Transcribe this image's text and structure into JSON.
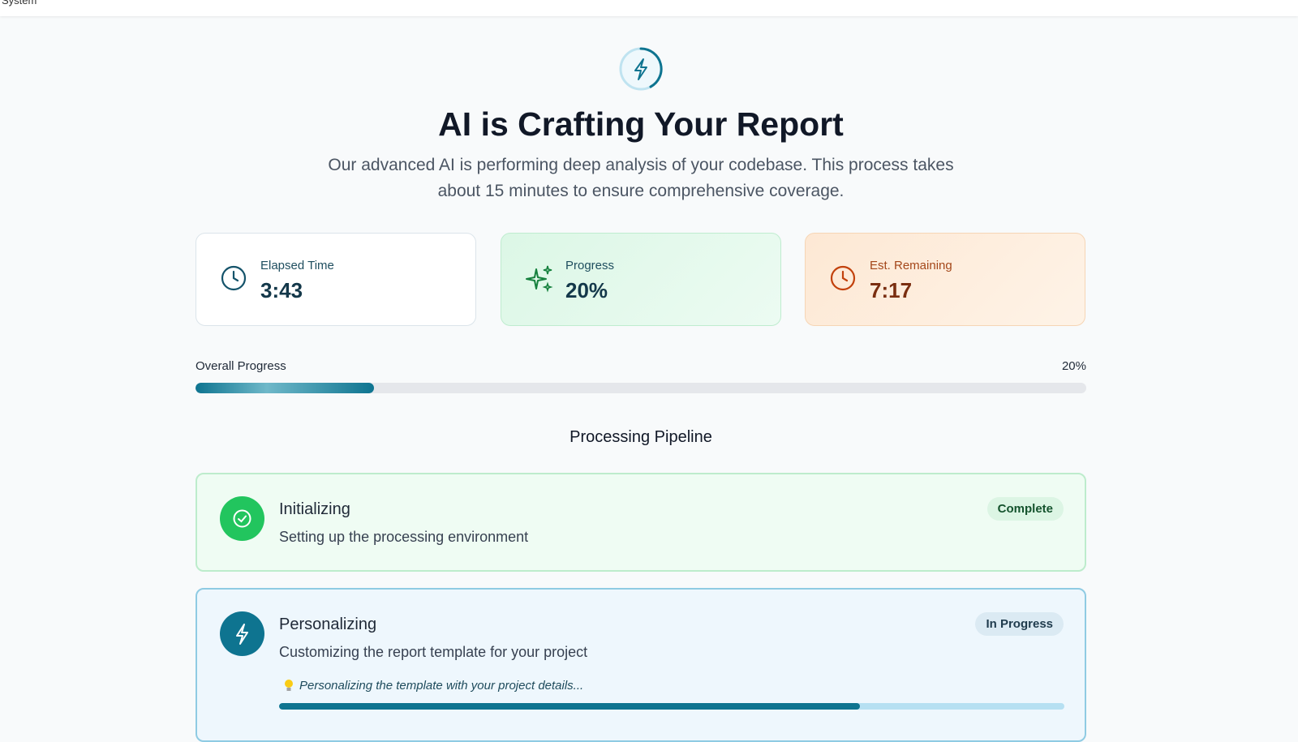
{
  "top_bar": {
    "label": "System"
  },
  "header": {
    "title": "AI is Crafting Your Report",
    "subtitle": "Our advanced AI is performing deep analysis of your codebase. This process takes about 15 minutes to ensure comprehensive coverage."
  },
  "stats": [
    {
      "label": "Elapsed Time",
      "value": "3:43"
    },
    {
      "label": "Progress",
      "value": "20%"
    },
    {
      "label": "Est. Remaining",
      "value": "7:17"
    }
  ],
  "overall_progress": {
    "label": "Overall Progress",
    "percent": {
      "value": 20,
      "label": "20%"
    }
  },
  "pipeline": {
    "title": "Processing Pipeline",
    "steps": [
      {
        "name": "Initializing",
        "description": "Setting up the processing environment",
        "status": "Complete"
      },
      {
        "name": "Personalizing",
        "description": "Customizing the report template for your project",
        "status": "In Progress",
        "detail": "Personalizing the template with your project details...",
        "progress": 74
      }
    ]
  }
}
